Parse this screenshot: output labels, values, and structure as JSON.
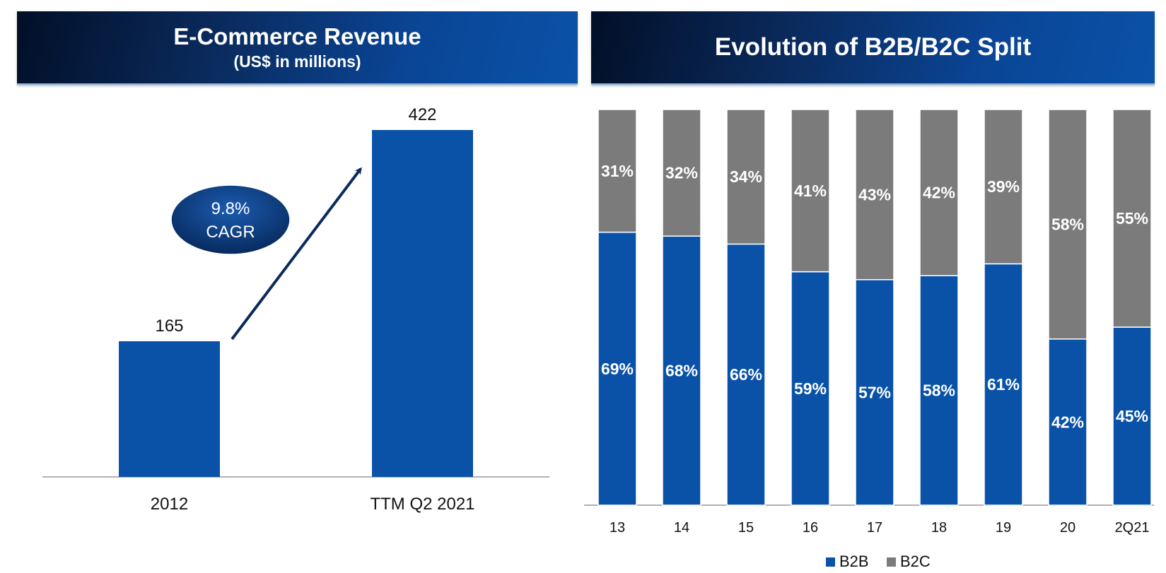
{
  "left_panel": {
    "title": "E-Commerce Revenue",
    "subtitle": "(US$ in millions)",
    "cagr_value": "9.8%",
    "cagr_label": "CAGR"
  },
  "right_panel": {
    "title": "Evolution of B2B/B2C Split"
  },
  "colors": {
    "primary_blue": "#0a52a8",
    "gray": "#7b7b7b",
    "banner_dark": "#020f27"
  },
  "chart_data": [
    {
      "type": "bar",
      "title": "E-Commerce Revenue",
      "ylabel": "US$ in millions",
      "categories": [
        "2012",
        "TTM Q2 2021"
      ],
      "values": [
        165,
        422
      ],
      "ylim": [
        0,
        440
      ],
      "annotation": "9.8% CAGR"
    },
    {
      "type": "bar",
      "stacked": true,
      "title": "Evolution of B2B/B2C Split",
      "categories": [
        "13",
        "14",
        "15",
        "16",
        "17",
        "18",
        "19",
        "20",
        "2Q21"
      ],
      "ylim": [
        0,
        100
      ],
      "legend": "bottom",
      "series": [
        {
          "name": "B2B",
          "color": "#0a52a8",
          "values": [
            69,
            68,
            66,
            59,
            57,
            58,
            61,
            42,
            45
          ]
        },
        {
          "name": "B2C",
          "color": "#7b7b7b",
          "values": [
            31,
            32,
            34,
            41,
            43,
            42,
            39,
            58,
            55
          ]
        }
      ]
    }
  ]
}
